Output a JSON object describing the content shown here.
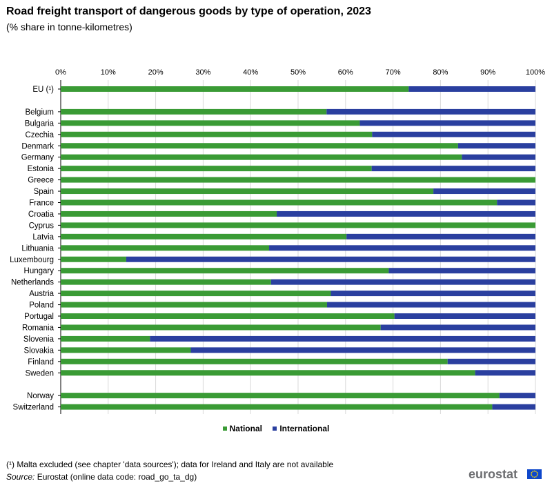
{
  "title": "Road freight transport of dangerous goods by type of operation, 2023",
  "subtitle": "(% share in tonne-kilometres)",
  "legend": {
    "national": "National",
    "international": "International"
  },
  "footnote": "(¹) Malta excluded (see chapter 'data sources'); data for Ireland and Italy  are not available",
  "source": {
    "label": "Source:",
    "text": " Eurostat (online data code: road_go_ta_dg)"
  },
  "logo": {
    "text": "eurostat",
    "flag_icon": "eu-flag-icon"
  },
  "colors": {
    "national": "#3a9b35",
    "international": "#2a3f9f",
    "grid": "#d9d9d9",
    "axis": "#000000"
  },
  "chart_data": {
    "type": "bar",
    "orientation": "horizontal",
    "stacked": true,
    "categories": [
      "EU (¹)",
      "Belgium",
      "Bulgaria",
      "Czechia",
      "Denmark",
      "Germany",
      "Estonia",
      "Greece",
      "Spain",
      "France",
      "Croatia",
      "Cyprus",
      "Latvia",
      "Lithuania",
      "Luxembourg",
      "Hungary",
      "Netherlands",
      "Austria",
      "Poland",
      "Portugal",
      "Romania",
      "Slovenia",
      "Slovakia",
      "Finland",
      "Sweden",
      "Norway",
      "Switzerland"
    ],
    "groups": [
      [
        0
      ],
      [
        1,
        24
      ],
      [
        25,
        26
      ]
    ],
    "series": [
      {
        "name": "National",
        "values": [
          73.3,
          56.0,
          63.0,
          65.6,
          83.7,
          84.5,
          65.5,
          100.0,
          78.5,
          91.9,
          45.5,
          100.0,
          60.2,
          43.9,
          13.8,
          69.1,
          44.3,
          56.9,
          56.1,
          70.3,
          67.4,
          18.8,
          27.4,
          81.5,
          87.3,
          92.4,
          90.9
        ]
      },
      {
        "name": "International",
        "values": [
          26.7,
          44.0,
          37.0,
          34.4,
          16.3,
          15.5,
          34.5,
          0.0,
          21.5,
          8.1,
          54.5,
          0.0,
          39.8,
          56.1,
          86.2,
          30.9,
          55.7,
          43.1,
          43.9,
          29.7,
          32.6,
          81.2,
          72.6,
          18.5,
          12.7,
          7.6,
          9.1
        ]
      }
    ],
    "xlim": [
      0,
      100
    ],
    "xticks": [
      "0%",
      "10%",
      "20%",
      "30%",
      "40%",
      "50%",
      "60%",
      "70%",
      "80%",
      "90%",
      "100%"
    ],
    "axis_position": "top",
    "grid": true,
    "legend_position": "bottom"
  }
}
